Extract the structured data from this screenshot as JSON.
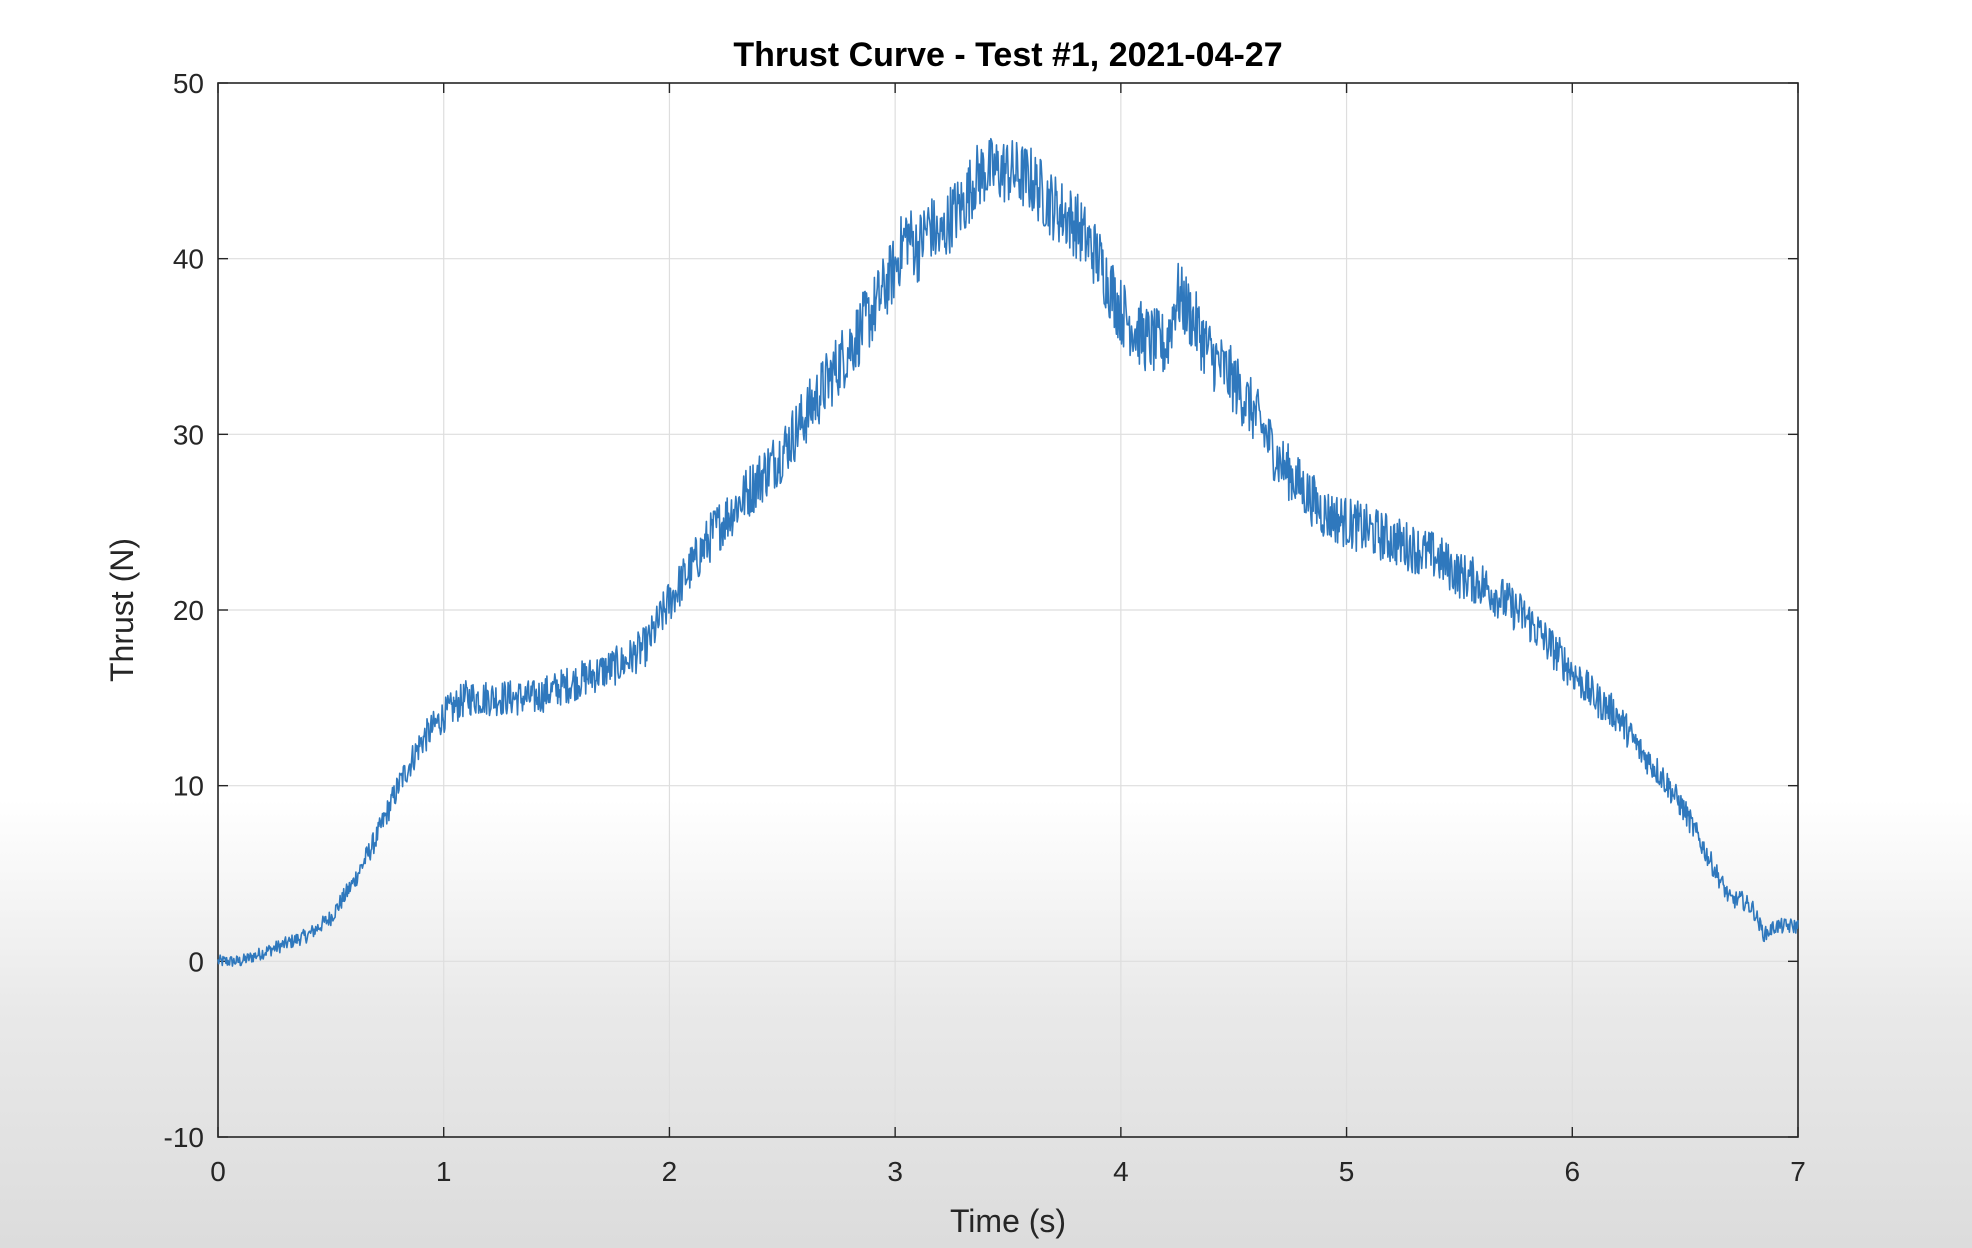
{
  "chart_data": {
    "type": "line",
    "title": "Thrust Curve - Test #1, 2021-04-27",
    "xlabel": "Time (s)",
    "ylabel": "Thrust (N)",
    "xlim": [
      0,
      7
    ],
    "ylim": [
      -10,
      50
    ],
    "xticks": [
      0,
      1,
      2,
      3,
      4,
      5,
      6,
      7
    ],
    "yticks": [
      -10,
      0,
      10,
      20,
      30,
      40,
      50
    ],
    "grid": true,
    "legend": "none",
    "series": [
      {
        "color": "#2f78bd",
        "x": [
          0,
          0.1,
          0.2,
          0.3,
          0.4,
          0.5,
          0.6,
          0.7,
          0.8,
          0.9,
          1.0,
          1.1,
          1.2,
          1.3,
          1.4,
          1.5,
          1.6,
          1.7,
          1.8,
          1.9,
          2.0,
          2.1,
          2.2,
          2.3,
          2.4,
          2.5,
          2.6,
          2.7,
          2.8,
          2.9,
          3.0,
          3.05,
          3.1,
          3.15,
          3.2,
          3.25,
          3.3,
          3.35,
          3.4,
          3.5,
          3.6,
          3.7,
          3.8,
          3.9,
          4.0,
          4.1,
          4.2,
          4.25,
          4.3,
          4.4,
          4.5,
          4.6,
          4.7,
          4.8,
          4.9,
          5.0,
          5.1,
          5.2,
          5.3,
          5.4,
          5.5,
          5.6,
          5.7,
          5.8,
          5.9,
          6.0,
          6.1,
          6.2,
          6.3,
          6.4,
          6.5,
          6.6,
          6.7,
          6.75,
          6.8,
          6.85,
          6.9,
          7.0
        ],
        "y": [
          0,
          0,
          0.5,
          1,
          1.5,
          2.5,
          4.5,
          7,
          10,
          12.5,
          14,
          15,
          15,
          15,
          15,
          15.5,
          16,
          16.5,
          17,
          18,
          20.5,
          22.5,
          24.5,
          26,
          27.5,
          29,
          31,
          33,
          35,
          37,
          39.5,
          41.5,
          40.5,
          42,
          41,
          42.5,
          43,
          44.5,
          45,
          45,
          44.5,
          43,
          42,
          40,
          37,
          35.5,
          35,
          38,
          37,
          34.5,
          33,
          31,
          28.5,
          27,
          25.5,
          25,
          24.5,
          24,
          23.5,
          23,
          22,
          21.5,
          20.5,
          19.5,
          18,
          16.5,
          15,
          14,
          12,
          10.5,
          8.5,
          6,
          3.5,
          3.5,
          3,
          1.5,
          2,
          2
        ]
      }
    ]
  }
}
